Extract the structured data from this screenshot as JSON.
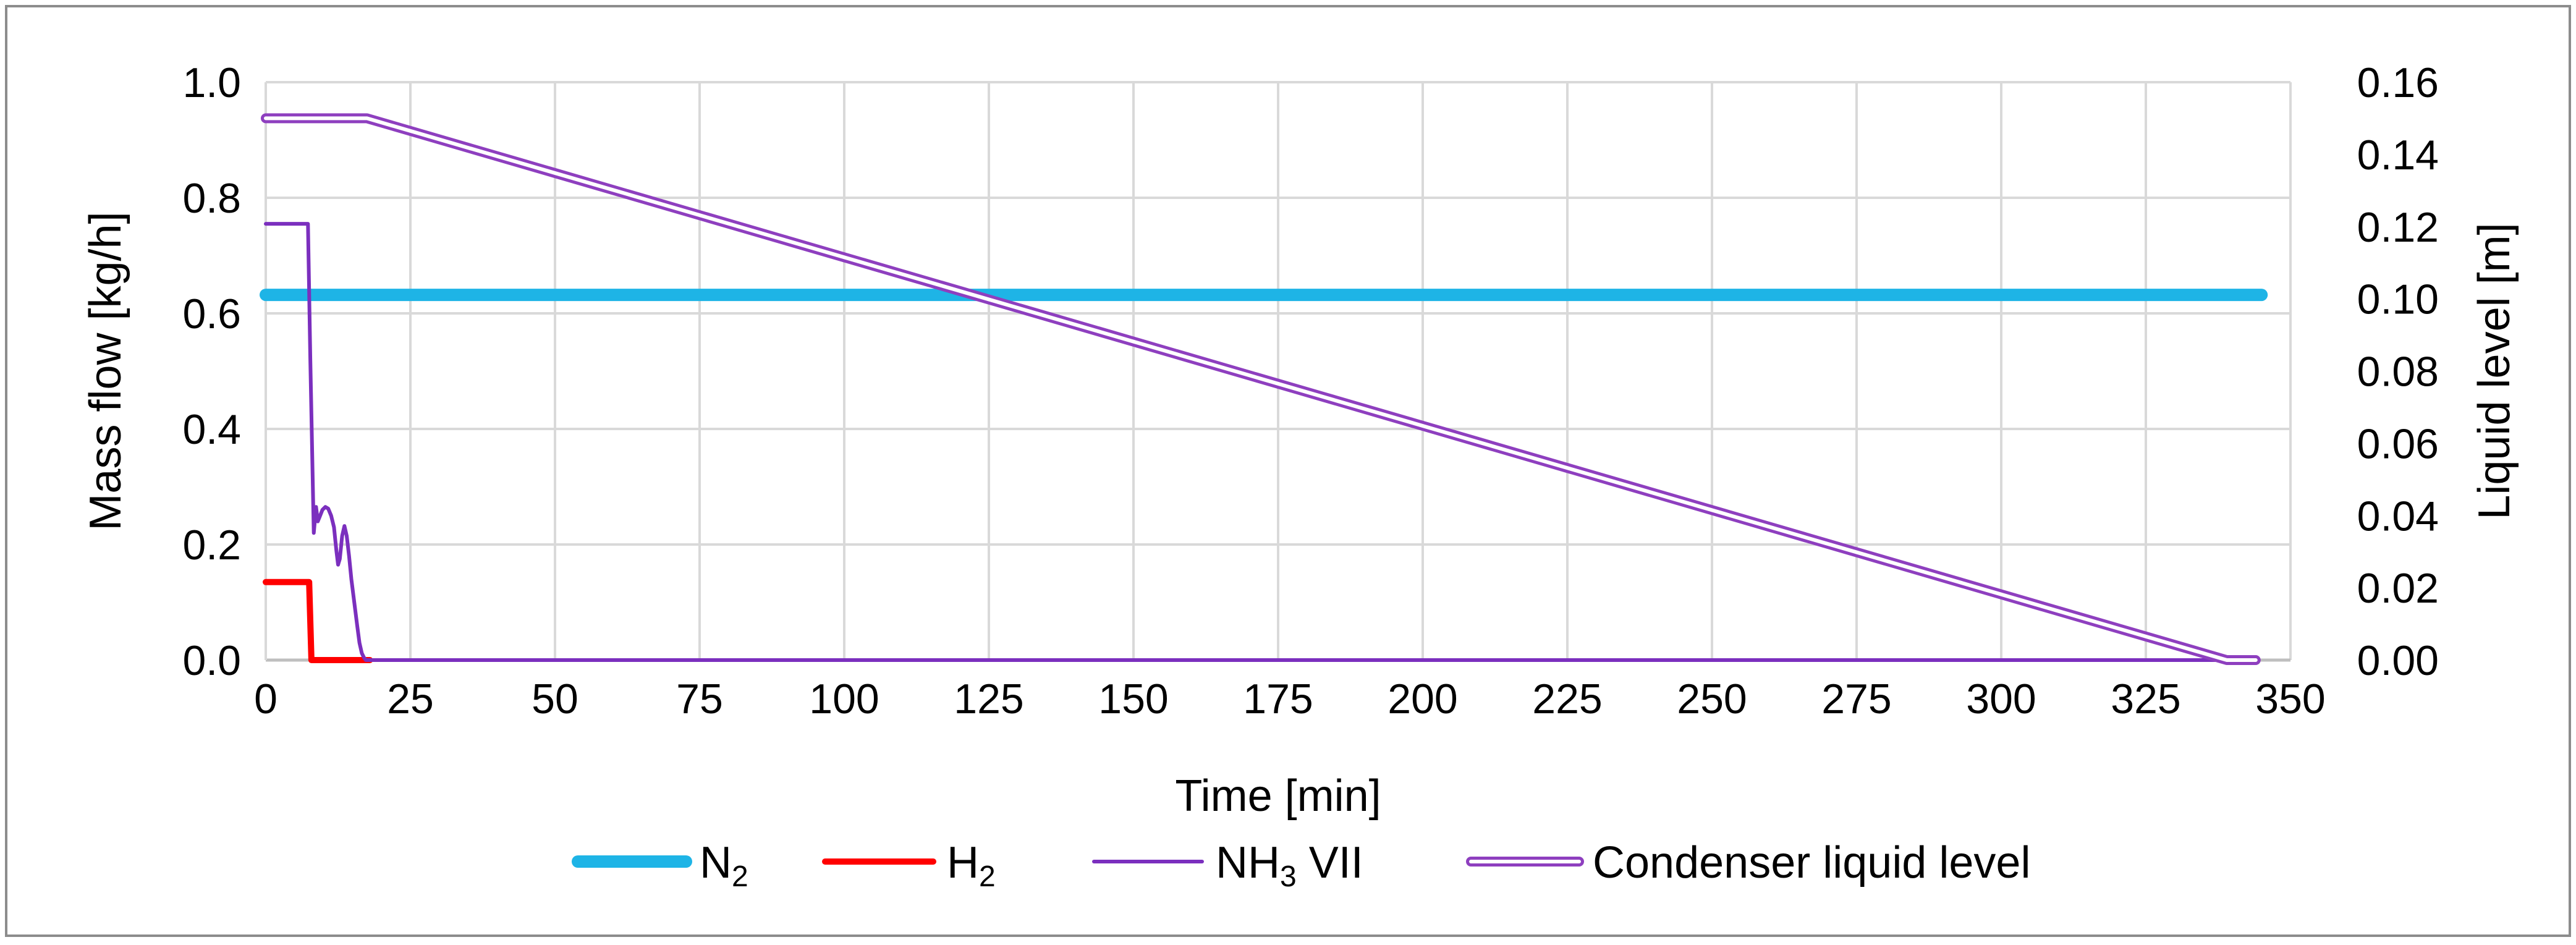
{
  "chart_data": {
    "type": "line",
    "title": "",
    "xlabel": "Time [min]",
    "ylabel": "Mass flow [kg/h]",
    "y2label": "Liquid level [m]",
    "xlim": [
      0,
      350
    ],
    "ylim": [
      0,
      1.0
    ],
    "y2lim": [
      0,
      0.16
    ],
    "grid": true,
    "legend_position": "bottom",
    "x_ticks": [
      {
        "value": 0,
        "label": "0"
      },
      {
        "value": 25,
        "label": "25"
      },
      {
        "value": 50,
        "label": "50"
      },
      {
        "value": 75,
        "label": "75"
      },
      {
        "value": 100,
        "label": "100"
      },
      {
        "value": 125,
        "label": "125"
      },
      {
        "value": 150,
        "label": "150"
      },
      {
        "value": 175,
        "label": "175"
      },
      {
        "value": 200,
        "label": "200"
      },
      {
        "value": 225,
        "label": "225"
      },
      {
        "value": 250,
        "label": "250"
      },
      {
        "value": 275,
        "label": "275"
      },
      {
        "value": 300,
        "label": "300"
      },
      {
        "value": 325,
        "label": "325"
      },
      {
        "value": 350,
        "label": "350"
      }
    ],
    "y_ticks": [
      {
        "value": 0,
        "label": "0.0"
      },
      {
        "value": 0.2,
        "label": "0.2"
      },
      {
        "value": 0.4,
        "label": "0.4"
      },
      {
        "value": 0.6,
        "label": "0.6"
      },
      {
        "value": 0.8,
        "label": "0.8"
      },
      {
        "value": 1.0,
        "label": "1.0"
      }
    ],
    "y2_ticks": [
      {
        "value": 0,
        "label": "0.00"
      },
      {
        "value": 0.02,
        "label": "0.02"
      },
      {
        "value": 0.04,
        "label": "0.04"
      },
      {
        "value": 0.06,
        "label": "0.06"
      },
      {
        "value": 0.08,
        "label": "0.08"
      },
      {
        "value": 0.1,
        "label": "0.10"
      },
      {
        "value": 0.12,
        "label": "0.12"
      },
      {
        "value": 0.14,
        "label": "0.14"
      },
      {
        "value": 0.16,
        "label": "0.16"
      }
    ],
    "series": [
      {
        "name": "N2",
        "legend_base": "N",
        "legend_sub": "2",
        "legend_suffix": "",
        "axis": "y",
        "style": "thick",
        "color": "#1EB4E6",
        "x": [
          0,
          345
        ],
        "y": [
          0.632,
          0.632
        ]
      },
      {
        "name": "H2",
        "legend_base": "H",
        "legend_sub": "2",
        "legend_suffix": "",
        "axis": "y",
        "style": "medium",
        "color": "#FF0000",
        "x": [
          0,
          7.5,
          7.9,
          18
        ],
        "y": [
          0.135,
          0.135,
          0.0,
          0.0
        ]
      },
      {
        "name": "NH3 VII",
        "legend_base": "NH",
        "legend_sub": "3",
        "legend_suffix": " VII",
        "axis": "y",
        "style": "thin",
        "color": "#7B2FBE",
        "x": [
          0,
          7.3,
          7.7,
          8.3,
          8.7,
          9.0,
          9.4,
          9.8,
          10.3,
          10.8,
          11.3,
          11.8,
          12.2,
          12.5,
          12.8,
          13.2,
          13.6,
          14.0,
          14.4,
          14.8,
          15.3,
          15.8,
          16.2,
          16.6,
          17.0,
          17.3,
          344
        ],
        "y": [
          0.755,
          0.755,
          0.52,
          0.22,
          0.265,
          0.24,
          0.25,
          0.26,
          0.265,
          0.262,
          0.25,
          0.23,
          0.19,
          0.165,
          0.175,
          0.215,
          0.232,
          0.215,
          0.18,
          0.14,
          0.1,
          0.06,
          0.03,
          0.012,
          0.004,
          0.0,
          0.0
        ]
      },
      {
        "name": "Condenser liquid level",
        "legend_base": "Condenser liquid level",
        "legend_sub": "",
        "legend_suffix": "",
        "axis": "y2",
        "style": "double",
        "color": "#8E3FBF",
        "x": [
          0,
          17.5,
          339,
          344
        ],
        "y": [
          0.15,
          0.15,
          0.0,
          0.0
        ]
      }
    ]
  }
}
